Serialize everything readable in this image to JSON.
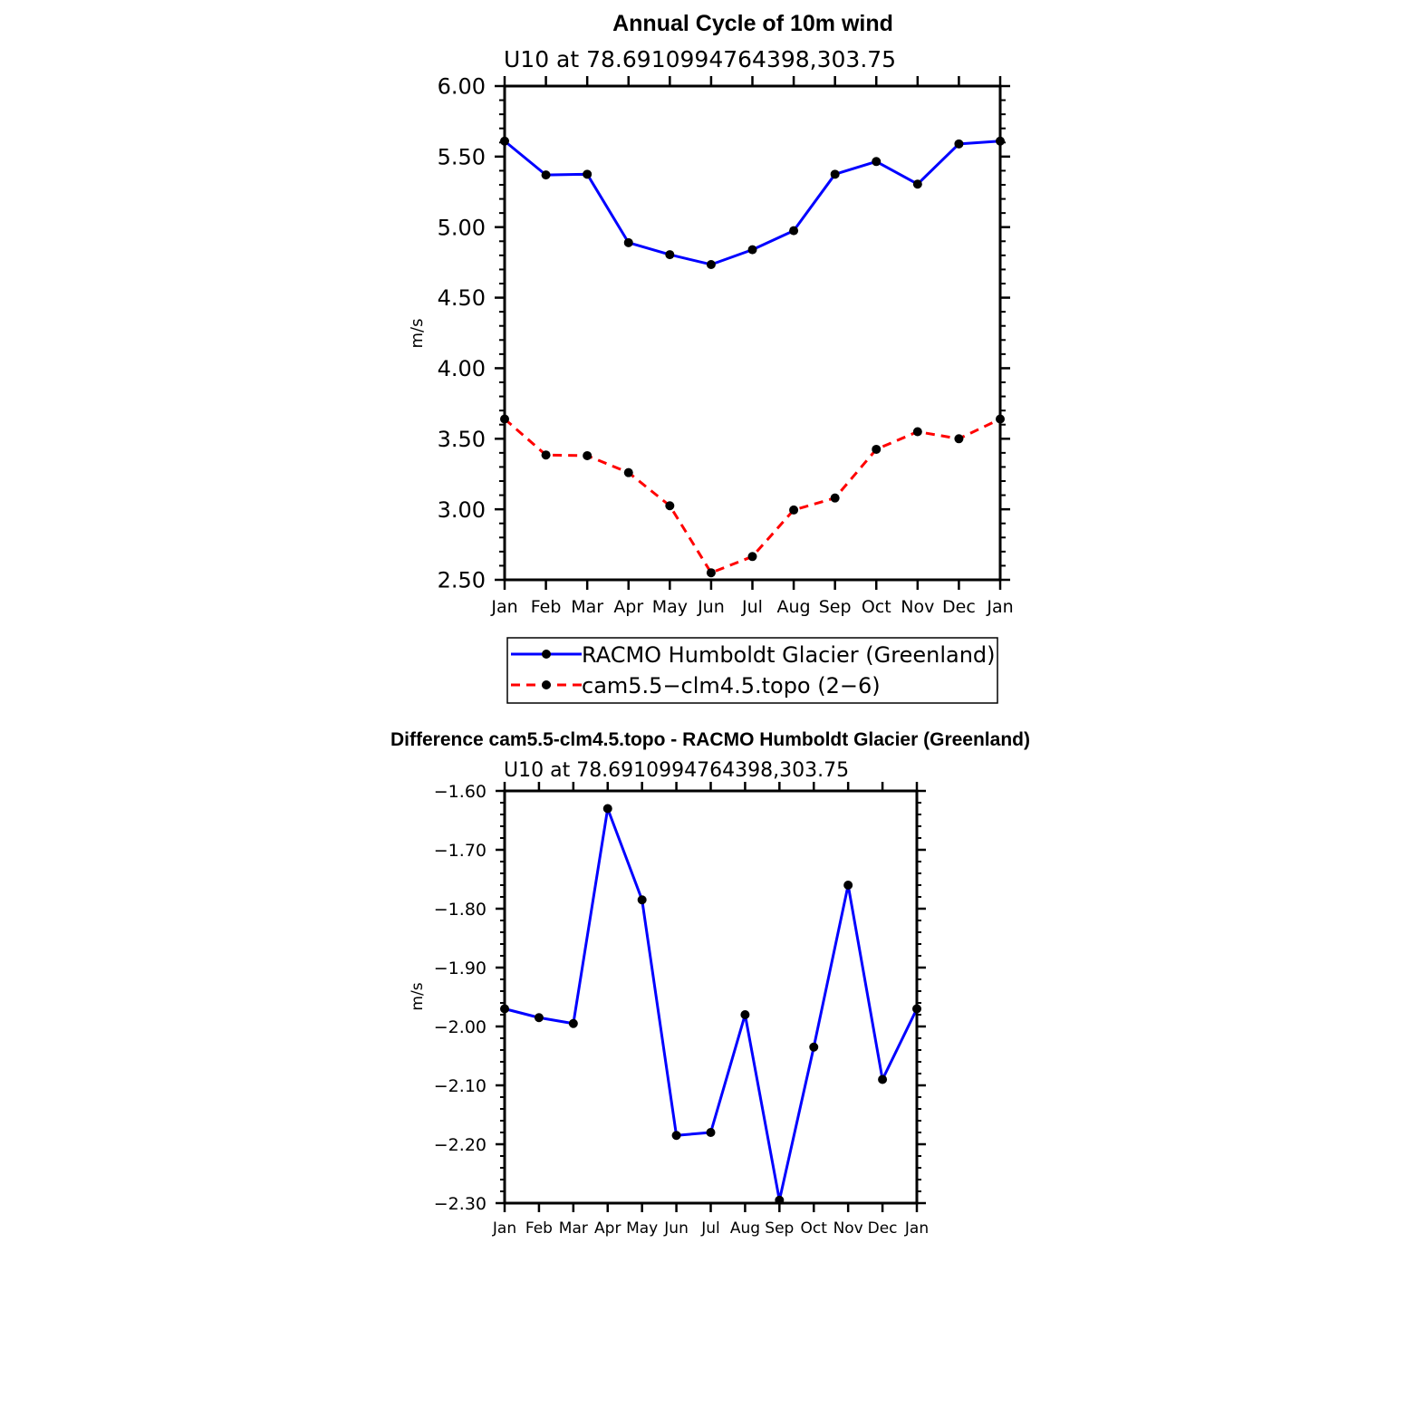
{
  "chart_data": [
    {
      "type": "line",
      "title": "Annual Cycle of 10m wind",
      "subtitle": "U10  at  78.6910994764398,303.75",
      "ylabel": "m/s",
      "xlabel": "",
      "categories": [
        "Jan",
        "Feb",
        "Mar",
        "Apr",
        "May",
        "Jun",
        "Jul",
        "Aug",
        "Sep",
        "Oct",
        "Nov",
        "Dec",
        "Jan"
      ],
      "ylim": [
        2.5,
        6.0
      ],
      "yticks": [
        "6.00",
        "5.50",
        "5.00",
        "4.50",
        "4.00",
        "3.50",
        "3.00",
        "2.50"
      ],
      "ytick_values": [
        6.0,
        5.5,
        5.0,
        4.5,
        4.0,
        3.5,
        3.0,
        2.5
      ],
      "legend_position": "below",
      "series": [
        {
          "name": "RACMO Humboldt Glacier (Greenland)",
          "color": "#0000ff",
          "dash": "solid",
          "values": [
            5.61,
            5.37,
            5.375,
            4.89,
            4.805,
            4.735,
            4.84,
            4.975,
            5.375,
            5.465,
            5.305,
            5.59,
            5.61
          ]
        },
        {
          "name": "cam5.5−clm4.5.topo (2−6)",
          "color": "#ff0000",
          "dash": "dashed",
          "values": [
            3.64,
            3.385,
            3.38,
            3.26,
            3.025,
            2.55,
            2.665,
            2.995,
            3.08,
            3.425,
            3.55,
            3.5,
            3.64
          ]
        }
      ]
    },
    {
      "type": "line",
      "title": "Difference cam5.5-clm4.5.topo - RACMO Humboldt Glacier (Greenland)",
      "subtitle": "U10  at  78.6910994764398,303.75",
      "ylabel": "m/s",
      "xlabel": "",
      "categories": [
        "Jan",
        "Feb",
        "Mar",
        "Apr",
        "May",
        "Jun",
        "Jul",
        "Aug",
        "Sep",
        "Oct",
        "Nov",
        "Dec",
        "Jan"
      ],
      "ylim": [
        -2.3,
        -1.6
      ],
      "yticks": [
        "−1.60",
        "−1.70",
        "−1.80",
        "−1.90",
        "−2.00",
        "−2.10",
        "−2.20",
        "−2.30"
      ],
      "ytick_values": [
        -1.6,
        -1.7,
        -1.8,
        -1.9,
        -2.0,
        -2.1,
        -2.2,
        -2.3
      ],
      "series": [
        {
          "name": "Difference",
          "color": "#0000ff",
          "dash": "solid",
          "values": [
            -1.97,
            -1.985,
            -1.995,
            -1.63,
            -1.785,
            -2.185,
            -2.18,
            -1.98,
            -2.295,
            -2.035,
            -1.76,
            -2.09,
            -1.97
          ]
        }
      ]
    }
  ]
}
